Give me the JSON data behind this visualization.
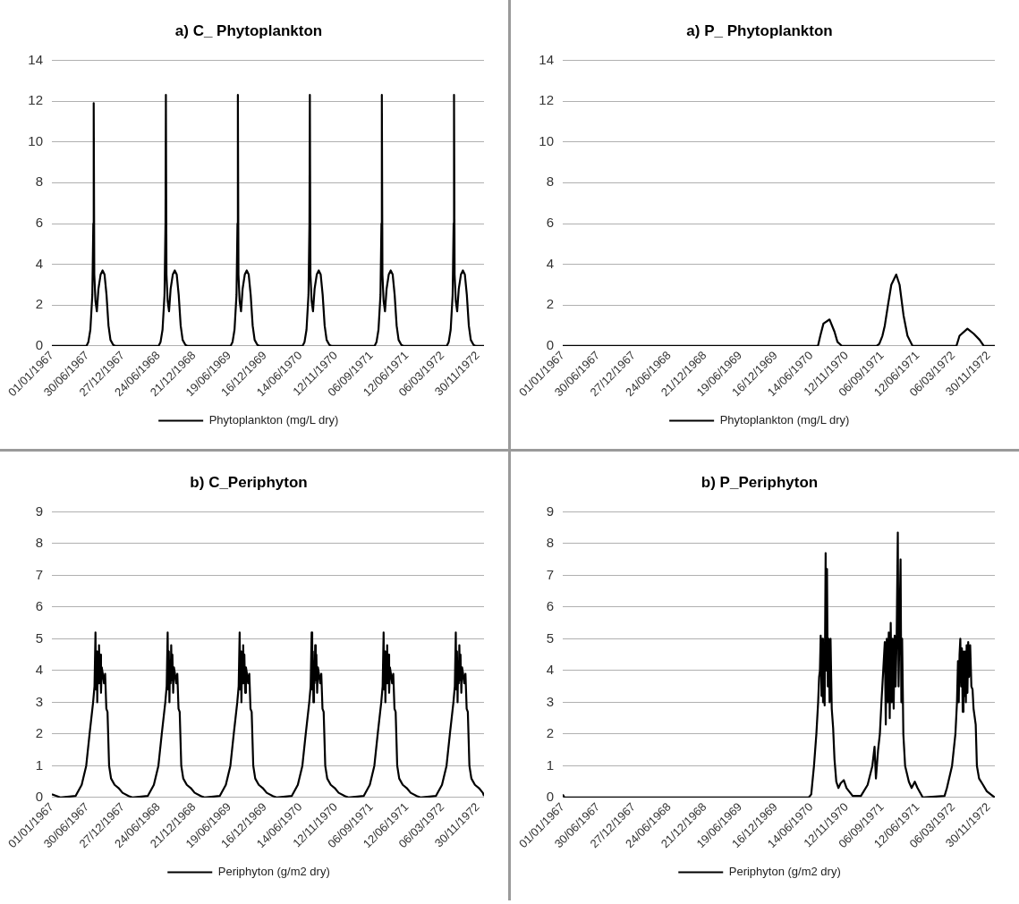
{
  "chart_data": [
    {
      "type": "line",
      "title": "a) C_ Phytoplankton",
      "legend": "bottom",
      "grid": "y",
      "marker": "none",
      "xlim": [
        "1967-01-01",
        "1972-12-31"
      ],
      "ylim": [
        0,
        14
      ],
      "yticks": [
        0,
        2,
        4,
        6,
        8,
        10,
        12,
        14
      ],
      "xticks": [
        {
          "value": "1967-01-01",
          "label": "01/01/1967"
        },
        {
          "value": "1967-06-30",
          "label": "30/06/1967"
        },
        {
          "value": "1967-12-27",
          "label": "27/12/1967"
        },
        {
          "value": "1968-06-24",
          "label": "24/06/1968"
        },
        {
          "value": "1968-12-21",
          "label": "21/12/1968"
        },
        {
          "value": "1969-06-19",
          "label": "19/06/1969"
        },
        {
          "value": "1969-12-16",
          "label": "16/12/1969"
        },
        {
          "value": "1970-06-14",
          "label": "14/06/1970"
        },
        {
          "value": "1970-12-11",
          "label": "12/11/1970"
        },
        {
          "value": "1971-06-09",
          "label": "06/09/1971"
        },
        {
          "value": "1971-12-06",
          "label": "12/06/1971"
        },
        {
          "value": "1972-06-03",
          "label": "06/03/1972"
        },
        {
          "value": "1972-11-30",
          "label": "30/11/1972"
        }
      ],
      "series": [
        {
          "name": "Phytoplankton (mg/L dry)",
          "color": "#000000",
          "x": [
            "1967-01-01",
            "1967-06-25",
            "1967-07-05",
            "1967-07-15",
            "1967-07-25",
            "1967-07-30",
            "1967-08-01",
            "1967-08-04",
            "1967-08-10",
            "1967-08-17",
            "1967-08-25",
            "1967-09-05",
            "1967-09-15",
            "1967-09-25",
            "1967-10-05",
            "1967-10-15",
            "1967-10-25",
            "1967-11-08",
            "1967-11-20",
            "1968-06-25",
            "1968-07-05",
            "1968-07-15",
            "1968-07-25",
            "1968-07-30",
            "1968-08-01",
            "1968-08-04",
            "1968-08-10",
            "1968-08-17",
            "1968-08-25",
            "1968-09-05",
            "1968-09-15",
            "1968-09-25",
            "1968-10-05",
            "1968-10-15",
            "1968-10-25",
            "1968-11-08",
            "1968-11-20",
            "1969-06-25",
            "1969-07-05",
            "1969-07-15",
            "1969-07-25",
            "1969-07-30",
            "1969-08-01",
            "1969-08-04",
            "1969-08-10",
            "1969-08-17",
            "1969-08-25",
            "1969-09-05",
            "1969-09-15",
            "1969-09-25",
            "1969-10-05",
            "1969-10-15",
            "1969-10-25",
            "1969-11-08",
            "1969-11-20",
            "1970-06-25",
            "1970-07-05",
            "1970-07-15",
            "1970-07-25",
            "1970-07-30",
            "1970-08-01",
            "1970-08-04",
            "1970-08-10",
            "1970-08-17",
            "1970-08-25",
            "1970-09-05",
            "1970-09-15",
            "1970-09-25",
            "1970-10-05",
            "1970-10-15",
            "1970-10-25",
            "1970-11-08",
            "1970-11-20",
            "1971-06-25",
            "1971-07-05",
            "1971-07-15",
            "1971-07-25",
            "1971-07-30",
            "1971-08-01",
            "1971-08-04",
            "1971-08-10",
            "1971-08-17",
            "1971-08-25",
            "1971-09-05",
            "1971-09-15",
            "1971-09-25",
            "1971-10-05",
            "1971-10-15",
            "1971-10-25",
            "1971-11-08",
            "1971-11-20",
            "1972-06-25",
            "1972-07-05",
            "1972-07-15",
            "1972-07-25",
            "1972-07-30",
            "1972-08-01",
            "1972-08-04",
            "1972-08-10",
            "1972-08-17",
            "1972-08-25",
            "1972-09-05",
            "1972-09-15",
            "1972-09-25",
            "1972-10-05",
            "1972-10-15",
            "1972-10-25",
            "1972-11-08",
            "1972-11-20",
            "1972-12-31"
          ],
          "values": [
            0,
            0,
            0.2,
            0.8,
            2.5,
            6,
            11.9,
            3.5,
            2.2,
            1.7,
            2.8,
            3.5,
            3.7,
            3.5,
            2.5,
            1,
            0.3,
            0.05,
            0,
            0,
            0.2,
            0.8,
            2.5,
            6,
            12.3,
            3.5,
            2.2,
            1.7,
            2.8,
            3.5,
            3.7,
            3.5,
            2.5,
            1,
            0.3,
            0.05,
            0,
            0,
            0.2,
            0.8,
            2.5,
            6,
            12.3,
            3.5,
            2.2,
            1.7,
            2.8,
            3.5,
            3.7,
            3.5,
            2.5,
            1,
            0.3,
            0.05,
            0,
            0,
            0.2,
            0.8,
            2.5,
            6,
            12.3,
            3.5,
            2.2,
            1.7,
            2.8,
            3.5,
            3.7,
            3.5,
            2.5,
            1,
            0.3,
            0.05,
            0,
            0,
            0.2,
            0.8,
            2.5,
            6,
            12.3,
            3.5,
            2.2,
            1.7,
            2.8,
            3.5,
            3.7,
            3.5,
            2.5,
            1,
            0.3,
            0.05,
            0,
            0,
            0.2,
            0.8,
            2.5,
            6,
            12.3,
            3.5,
            2.2,
            1.7,
            2.8,
            3.5,
            3.7,
            3.5,
            2.5,
            1,
            0.3,
            0.05,
            0,
            0
          ]
        }
      ]
    },
    {
      "type": "line",
      "title": "a) P_ Phytoplankton",
      "legend": "bottom",
      "grid": "y",
      "marker": "none",
      "xlim": [
        "1967-01-01",
        "1972-12-31"
      ],
      "ylim": [
        0,
        14
      ],
      "yticks": [
        0,
        2,
        4,
        6,
        8,
        10,
        12,
        14
      ],
      "xticks": [
        {
          "value": "1967-01-01",
          "label": "01/01/1967"
        },
        {
          "value": "1967-06-30",
          "label": "30/06/1967"
        },
        {
          "value": "1967-12-27",
          "label": "27/12/1967"
        },
        {
          "value": "1968-06-24",
          "label": "24/06/1968"
        },
        {
          "value": "1968-12-21",
          "label": "21/12/1968"
        },
        {
          "value": "1969-06-19",
          "label": "19/06/1969"
        },
        {
          "value": "1969-12-16",
          "label": "16/12/1969"
        },
        {
          "value": "1970-06-14",
          "label": "14/06/1970"
        },
        {
          "value": "1970-12-11",
          "label": "12/11/1970"
        },
        {
          "value": "1971-06-09",
          "label": "06/09/1971"
        },
        {
          "value": "1971-12-06",
          "label": "12/06/1971"
        },
        {
          "value": "1972-06-03",
          "label": "06/03/1972"
        },
        {
          "value": "1972-11-30",
          "label": "30/11/1972"
        }
      ],
      "series": [
        {
          "name": "Phytoplankton (mg/L dry)",
          "color": "#000000",
          "x": [
            "1967-01-01",
            "1970-07-18",
            "1970-07-30",
            "1970-08-15",
            "1970-09-15",
            "1970-10-10",
            "1970-10-25",
            "1970-11-17",
            "1971-05-11",
            "1971-05-25",
            "1971-06-10",
            "1971-06-22",
            "1971-07-08",
            "1971-07-25",
            "1971-08-19",
            "1971-09-05",
            "1971-09-25",
            "1971-10-15",
            "1971-11-10",
            "1972-06-19",
            "1972-07-05",
            "1972-08-14",
            "1972-09-15",
            "1972-10-15",
            "1972-11-05",
            "1972-12-31"
          ],
          "values": [
            0,
            0,
            0.5,
            1.1,
            1.3,
            0.7,
            0.2,
            0,
            0,
            0.1,
            0.5,
            1,
            2,
            3,
            3.5,
            3,
            1.5,
            0.5,
            0,
            0,
            0.5,
            0.85,
            0.6,
            0.3,
            0,
            0
          ]
        }
      ]
    },
    {
      "type": "line",
      "title": "b) C_Periphyton",
      "legend": "bottom",
      "grid": "y",
      "marker": "none",
      "xlim": [
        "1967-01-01",
        "1972-12-31"
      ],
      "ylim": [
        0,
        9
      ],
      "yticks": [
        0,
        1,
        2,
        3,
        4,
        5,
        6,
        7,
        8,
        9
      ],
      "xticks": [
        {
          "value": "1967-01-01",
          "label": "01/01/1967"
        },
        {
          "value": "1967-06-30",
          "label": "30/06/1967"
        },
        {
          "value": "1967-12-27",
          "label": "27/12/1967"
        },
        {
          "value": "1968-06-24",
          "label": "24/06/1968"
        },
        {
          "value": "1968-12-21",
          "label": "21/12/1968"
        },
        {
          "value": "1969-06-19",
          "label": "19/06/1969"
        },
        {
          "value": "1969-12-16",
          "label": "16/12/1969"
        },
        {
          "value": "1970-06-14",
          "label": "14/06/1970"
        },
        {
          "value": "1970-12-11",
          "label": "12/11/1970"
        },
        {
          "value": "1971-06-09",
          "label": "06/09/1971"
        },
        {
          "value": "1971-12-06",
          "label": "12/06/1971"
        },
        {
          "value": "1972-06-03",
          "label": "06/03/1972"
        },
        {
          "value": "1972-11-30",
          "label": "30/11/1972"
        }
      ],
      "series": [
        {
          "name": "Periphyton (g/m2 dry)",
          "color": "#000000",
          "x": [
            "1967-01-01",
            "1967-01-25",
            "1967-02-15",
            "1967-05-01",
            "1967-06-01",
            "1967-06-24",
            "1967-07-11",
            "1967-07-29",
            "1967-08-05",
            "1967-08-10",
            "1967-08-13",
            "1967-08-16",
            "1967-08-19",
            "1967-08-22",
            "1967-08-25",
            "1967-08-28",
            "1967-08-31",
            "1967-09-03",
            "1967-09-07",
            "1967-09-11",
            "1967-09-16",
            "1967-09-22",
            "1967-09-28",
            "1967-10-04",
            "1967-10-10",
            "1967-10-18",
            "1967-10-28",
            "1967-11-15",
            "1967-12-05",
            "1967-12-25",
            "1968-01-25",
            "1968-02-15",
            "1968-05-01",
            "1968-06-01",
            "1968-06-24",
            "1968-07-11",
            "1968-07-29",
            "1968-08-05",
            "1968-08-10",
            "1968-08-13",
            "1968-08-16",
            "1968-08-19",
            "1968-08-22",
            "1968-08-25",
            "1968-08-28",
            "1968-08-31",
            "1968-09-03",
            "1968-09-07",
            "1968-09-11",
            "1968-09-16",
            "1968-09-22",
            "1968-09-28",
            "1968-10-04",
            "1968-10-10",
            "1968-10-18",
            "1968-10-28",
            "1968-11-15",
            "1968-12-05",
            "1968-12-25",
            "1969-01-25",
            "1969-02-15",
            "1969-05-01",
            "1969-06-01",
            "1969-06-24",
            "1969-07-11",
            "1969-07-29",
            "1969-08-05",
            "1969-08-10",
            "1969-08-13",
            "1969-08-16",
            "1969-08-19",
            "1969-08-22",
            "1969-08-25",
            "1969-08-28",
            "1969-08-31",
            "1969-09-03",
            "1969-09-07",
            "1969-09-11",
            "1969-09-16",
            "1969-09-22",
            "1969-09-28",
            "1969-10-04",
            "1969-10-10",
            "1969-10-18",
            "1969-10-28",
            "1969-11-15",
            "1969-12-05",
            "1969-12-25",
            "1970-01-25",
            "1970-02-15",
            "1970-05-01",
            "1970-06-01",
            "1970-06-24",
            "1970-07-11",
            "1970-07-29",
            "1970-08-05",
            "1970-08-10",
            "1970-08-13",
            "1970-08-16",
            "1970-08-19",
            "1970-08-22",
            "1970-08-25",
            "1970-08-28",
            "1970-08-31",
            "1970-09-03",
            "1970-09-07",
            "1970-09-11",
            "1970-09-16",
            "1970-09-22",
            "1970-09-28",
            "1970-10-04",
            "1970-10-10",
            "1970-10-18",
            "1970-10-28",
            "1970-11-15",
            "1970-12-05",
            "1970-12-25",
            "1971-01-25",
            "1971-02-15",
            "1971-05-01",
            "1971-06-01",
            "1971-06-24",
            "1971-07-11",
            "1971-07-29",
            "1971-08-05",
            "1971-08-10",
            "1971-08-13",
            "1971-08-16",
            "1971-08-19",
            "1971-08-22",
            "1971-08-25",
            "1971-08-28",
            "1971-08-31",
            "1971-09-03",
            "1971-09-07",
            "1971-09-11",
            "1971-09-16",
            "1971-09-22",
            "1971-09-28",
            "1971-10-04",
            "1971-10-10",
            "1971-10-18",
            "1971-10-28",
            "1971-11-15",
            "1971-12-05",
            "1971-12-25",
            "1972-01-25",
            "1972-02-15",
            "1972-05-01",
            "1972-06-01",
            "1972-06-24",
            "1972-07-11",
            "1972-07-29",
            "1972-08-05",
            "1972-08-10",
            "1972-08-13",
            "1972-08-16",
            "1972-08-19",
            "1972-08-22",
            "1972-08-25",
            "1972-08-28",
            "1972-08-31",
            "1972-09-03",
            "1972-09-07",
            "1972-09-11",
            "1972-09-16",
            "1972-09-22",
            "1972-09-28",
            "1972-10-04",
            "1972-10-10",
            "1972-10-18",
            "1972-10-28",
            "1972-11-15",
            "1972-12-05",
            "1972-12-25",
            "1972-12-31"
          ],
          "values": [
            0.1,
            0.05,
            0,
            0.05,
            0.4,
            1,
            2,
            3,
            3.5,
            5.2,
            3.4,
            4.6,
            3,
            4.3,
            3.6,
            4.8,
            3.7,
            4.5,
            3.3,
            4.1,
            3.9,
            3.6,
            3.9,
            2.8,
            2.7,
            1,
            0.6,
            0.4,
            0.3,
            0.15,
            0.05,
            0,
            0.05,
            0.4,
            1,
            2,
            3,
            3.5,
            5.2,
            3.4,
            4.6,
            3,
            4.3,
            3.6,
            4.8,
            3.7,
            4.5,
            3.3,
            4.1,
            3.9,
            3.6,
            3.9,
            2.8,
            2.7,
            1,
            0.6,
            0.4,
            0.3,
            0.15,
            0.05,
            0,
            0.05,
            0.4,
            1,
            2,
            3,
            3.5,
            5.2,
            3.4,
            4.6,
            3,
            4.3,
            3.6,
            4.8,
            3.7,
            4.5,
            3.3,
            4.1,
            3.9,
            3.6,
            3.9,
            2.8,
            2.7,
            1,
            0.6,
            0.4,
            0.3,
            0.15,
            0.05,
            0,
            0.05,
            0.4,
            1,
            2,
            3,
            3.5,
            5.2,
            3.4,
            4.6,
            3,
            4.3,
            3.6,
            4.8,
            3.7,
            4.5,
            3.3,
            4.1,
            3.9,
            3.6,
            3.9,
            2.8,
            2.7,
            1,
            0.6,
            0.4,
            0.3,
            0.15,
            0.05,
            0,
            0.05,
            0.4,
            1,
            2,
            3,
            3.5,
            5.2,
            3.4,
            4.6,
            3,
            4.3,
            3.6,
            4.8,
            3.7,
            4.5,
            3.3,
            4.1,
            3.9,
            3.6,
            3.9,
            2.8,
            2.7,
            1,
            0.6,
            0.4,
            0.3,
            0.15,
            0.05,
            0,
            0.05,
            0.4,
            1,
            2,
            3,
            3.5,
            5.2,
            3.4,
            4.6,
            3,
            4.3,
            3.6,
            4.8,
            3.7,
            4.5,
            3.3,
            4.1,
            3.9,
            3.6,
            3.9,
            2.8,
            2.7,
            1,
            0.6,
            0.4,
            0.3,
            0.15,
            0.05
          ]
        }
      ]
    },
    {
      "type": "line",
      "title": "b) P_Periphyton",
      "legend": "bottom",
      "grid": "y",
      "marker": "none",
      "xlim": [
        "1967-01-01",
        "1972-12-31"
      ],
      "ylim": [
        0,
        9
      ],
      "yticks": [
        0,
        1,
        2,
        3,
        4,
        5,
        6,
        7,
        8,
        9
      ],
      "xticks": [
        {
          "value": "1967-01-01",
          "label": "01/01/1967"
        },
        {
          "value": "1967-06-30",
          "label": "30/06/1967"
        },
        {
          "value": "1967-12-27",
          "label": "27/12/1967"
        },
        {
          "value": "1968-06-24",
          "label": "24/06/1968"
        },
        {
          "value": "1968-12-21",
          "label": "21/12/1968"
        },
        {
          "value": "1969-06-19",
          "label": "19/06/1969"
        },
        {
          "value": "1969-12-16",
          "label": "16/12/1969"
        },
        {
          "value": "1970-06-14",
          "label": "14/06/1970"
        },
        {
          "value": "1970-12-11",
          "label": "12/11/1970"
        },
        {
          "value": "1971-06-09",
          "label": "06/09/1971"
        },
        {
          "value": "1971-12-06",
          "label": "12/06/1971"
        },
        {
          "value": "1972-06-03",
          "label": "06/03/1972"
        },
        {
          "value": "1972-11-30",
          "label": "30/11/1972"
        }
      ],
      "series": [
        {
          "name": "Periphyton (g/m2 dry)",
          "color": "#000000",
          "x": [
            "1967-01-01",
            "1967-01-10",
            "1970-06-01",
            "1970-06-14",
            "1970-06-28",
            "1970-07-10",
            "1970-07-19",
            "1970-07-24",
            "1970-07-28",
            "1970-08-01",
            "1970-08-05",
            "1970-08-09",
            "1970-08-13",
            "1970-08-17",
            "1970-08-21",
            "1970-08-26",
            "1970-08-29",
            "1970-09-02",
            "1970-09-06",
            "1970-09-10",
            "1970-09-15",
            "1970-09-20",
            "1970-09-26",
            "1970-10-03",
            "1970-10-10",
            "1970-10-19",
            "1970-10-30",
            "1970-11-10",
            "1970-11-26",
            "1970-12-10",
            "1971-01-10",
            "1971-02-21",
            "1971-03-27",
            "1971-04-20",
            "1971-05-01",
            "1971-05-08",
            "1971-05-19",
            "1971-05-28",
            "1971-06-05",
            "1971-06-14",
            "1971-06-22",
            "1971-06-27",
            "1971-07-02",
            "1971-07-07",
            "1971-07-12",
            "1971-07-17",
            "1971-07-22",
            "1971-07-27",
            "1971-08-01",
            "1971-08-06",
            "1971-08-11",
            "1971-08-16",
            "1971-08-21",
            "1971-08-27",
            "1971-08-31",
            "1971-09-04",
            "1971-09-10",
            "1971-09-14",
            "1971-09-18",
            "1971-09-24",
            "1971-10-03",
            "1971-10-22",
            "1971-11-05",
            "1971-11-21",
            "1971-12-05",
            "1972-01-01",
            "1972-04-20",
            "1972-05-02",
            "1972-05-28",
            "1972-06-14",
            "1972-06-22",
            "1972-06-27",
            "1972-07-01",
            "1972-07-05",
            "1972-07-09",
            "1972-07-13",
            "1972-07-17",
            "1972-07-21",
            "1972-07-25",
            "1972-07-29",
            "1972-08-02",
            "1972-08-06",
            "1972-08-10",
            "1972-08-14",
            "1972-08-18",
            "1972-08-22",
            "1972-08-28",
            "1972-09-03",
            "1972-09-09",
            "1972-09-14",
            "1972-09-25",
            "1972-10-01",
            "1972-10-12",
            "1972-11-01",
            "1972-11-20",
            "1972-12-10",
            "1972-12-31"
          ],
          "values": [
            0.1,
            0,
            0,
            0.1,
            1,
            2,
            3,
            3.8,
            4,
            5.1,
            3.2,
            5,
            3,
            4.8,
            2.9,
            7.7,
            4,
            7.2,
            3.5,
            5,
            3,
            5,
            2.8,
            2.2,
            1.2,
            0.5,
            0.3,
            0.45,
            0.55,
            0.3,
            0.05,
            0.05,
            0.4,
            1,
            1.6,
            0.6,
            1.5,
            2,
            3,
            4,
            4.9,
            2.3,
            5,
            3,
            5.2,
            2.5,
            5.5,
            3,
            5,
            2.8,
            5.1,
            3.5,
            5,
            8.35,
            3.5,
            5.1,
            7.5,
            3,
            5,
            2,
            1,
            0.5,
            0.3,
            0.5,
            0.3,
            0,
            0.05,
            0.3,
            1,
            2,
            3,
            4.3,
            3,
            4.5,
            5,
            3.5,
            4.7,
            2.7,
            4.6,
            3.2,
            4.6,
            3,
            4.8,
            3.3,
            4.9,
            3.8,
            4.8,
            3.5,
            3.4,
            2.8,
            2.3,
            1,
            0.6,
            0.4,
            0.2,
            0.1,
            0
          ]
        }
      ]
    }
  ]
}
